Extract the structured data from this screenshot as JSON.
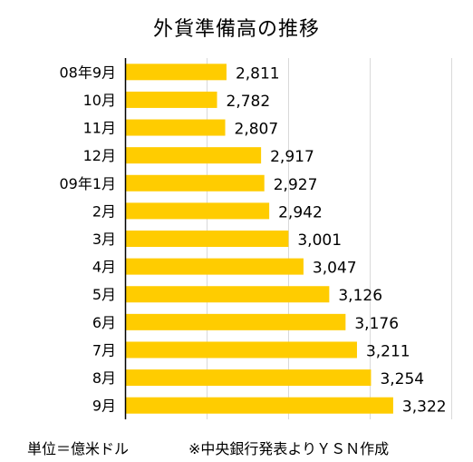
{
  "title": "外貨準備高の推移",
  "footer": {
    "unit": "単位＝億米ドル",
    "source": "※中央銀行発表よりＹＳＮ作成"
  },
  "colors": {
    "bar": "#FFCC00",
    "gridline": "#d9d9d9",
    "axis": "#000000"
  },
  "chart_data": {
    "type": "bar",
    "orientation": "horizontal",
    "title": "外貨準備高の推移",
    "categories": [
      "08年9月",
      "10月",
      "11月",
      "12月",
      "09年1月",
      "2月",
      "3月",
      "4月",
      "5月",
      "6月",
      "7月",
      "8月",
      "9月"
    ],
    "values": [
      2811,
      2782,
      2807,
      2917,
      2927,
      2942,
      3001,
      3047,
      3126,
      3176,
      3211,
      3254,
      3322
    ],
    "value_labels": [
      "2,811",
      "2,782",
      "2,807",
      "2,917",
      "2,927",
      "2,942",
      "3,001",
      "3,047",
      "3,126",
      "3,176",
      "3,211",
      "3,254",
      "3,322"
    ],
    "xlim": [
      2500,
      3500
    ],
    "grid": true,
    "legend": "none"
  }
}
